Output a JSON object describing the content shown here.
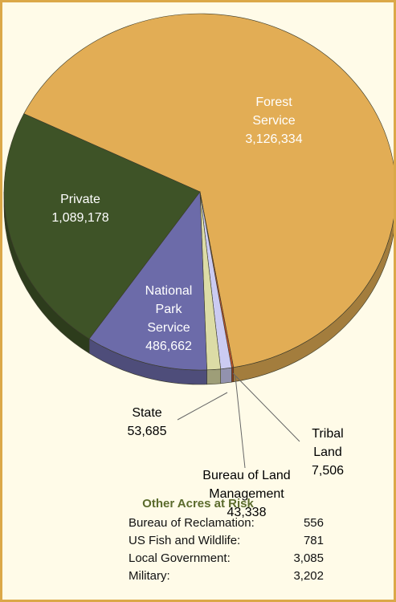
{
  "chart_data": {
    "type": "pie",
    "categories": [
      "Forest Service",
      "Tribal Land",
      "Bureau of Land Management",
      "State",
      "National Park Service",
      "Private"
    ],
    "values": [
      3126334,
      7506,
      43338,
      53685,
      486662,
      1089178
    ],
    "value_labels": [
      "3,126,334",
      "7,506",
      "43,338",
      "53,685",
      "486,662",
      "1,089,178"
    ],
    "colors": [
      "#e2ad55",
      "#c4522a",
      "#cbcbf2",
      "#dcdca6",
      "#6c6ba9",
      "#3e5327"
    ]
  },
  "table": {
    "title": "Other Acres at Risk",
    "rows": [
      [
        "Bureau of Reclamation:",
        "556"
      ],
      [
        "US Fish and Wildlife:",
        "781"
      ],
      [
        "Local Government:",
        "3,085"
      ],
      [
        "Military:",
        "3,202"
      ]
    ]
  }
}
